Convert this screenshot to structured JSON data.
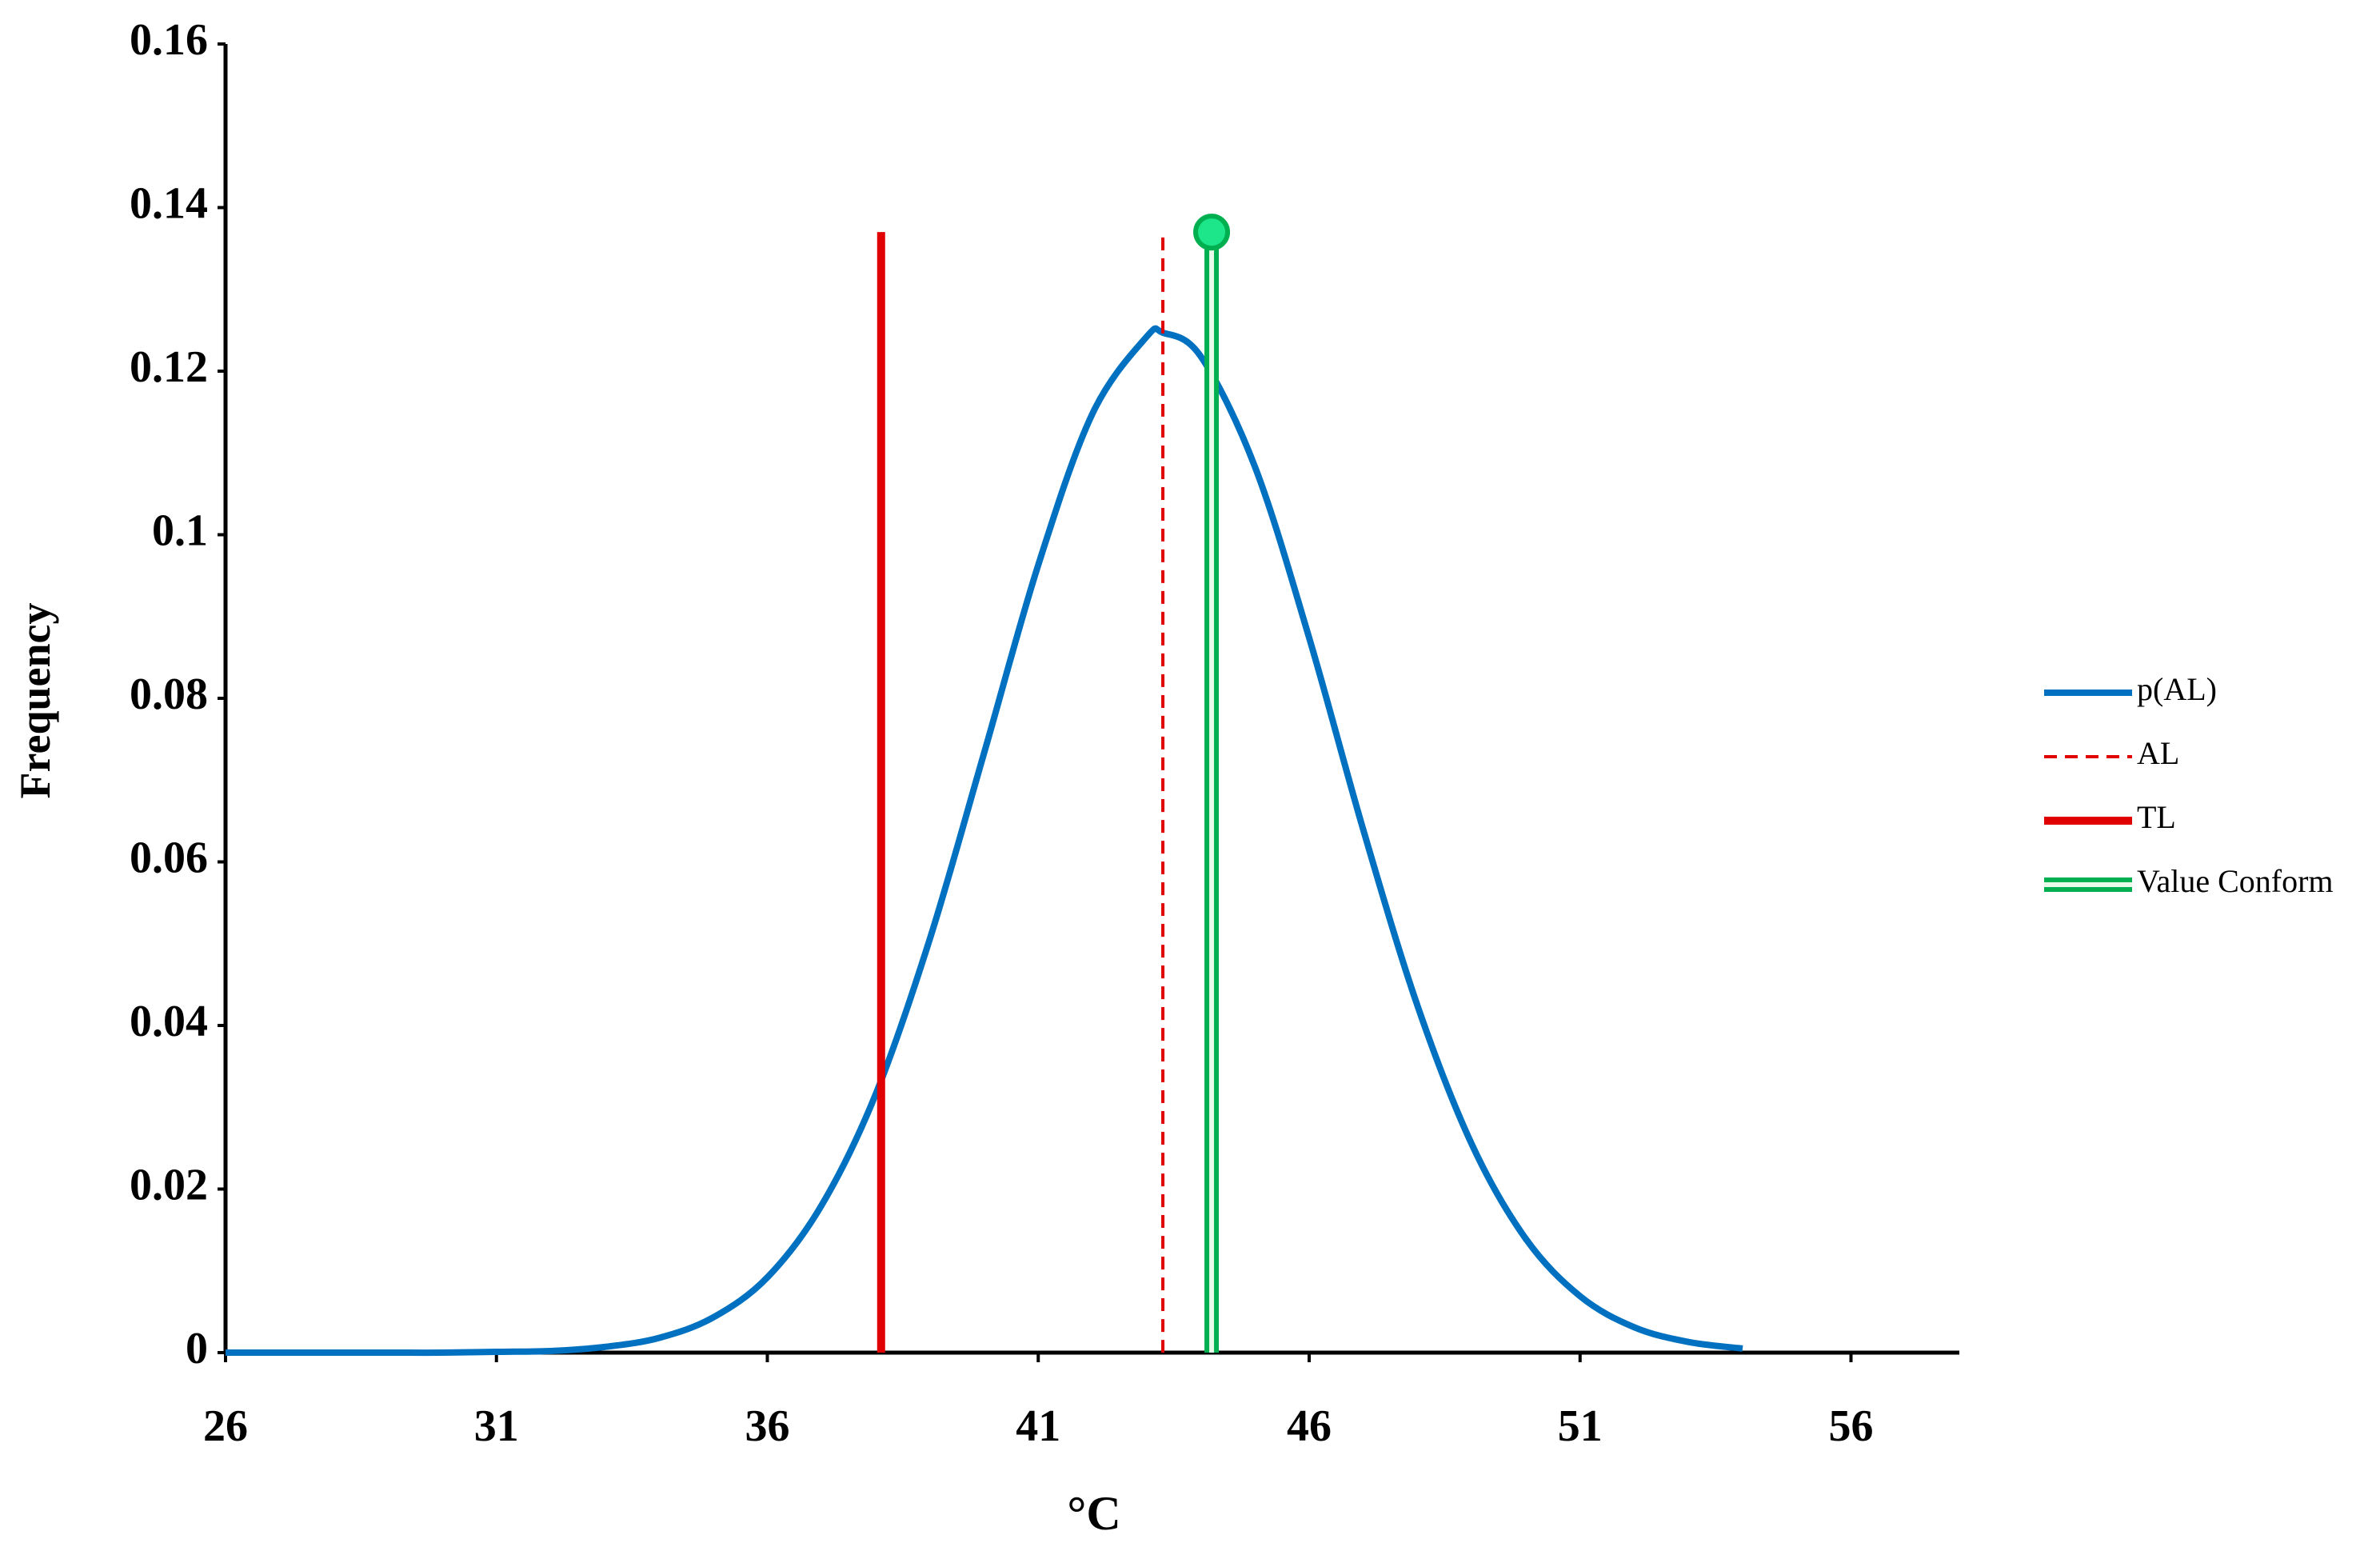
{
  "chart_data": {
    "type": "line",
    "xlabel": "°C",
    "ylabel": "Frequency",
    "xlim": [
      26,
      58
    ],
    "xticks": [
      26,
      31,
      36,
      41,
      46,
      51,
      56
    ],
    "ylim": [
      0,
      0.16
    ],
    "yticks": [
      0,
      0.02,
      0.04,
      0.06,
      0.08,
      0.1,
      0.12,
      0.14,
      0.16
    ],
    "legend": "right",
    "series": [
      {
        "name": "p(AL)",
        "color": "#0070c0",
        "style": "solid",
        "x": [
          26,
          27,
          28,
          29,
          30,
          31,
          32,
          33,
          34,
          35,
          36,
          37,
          38,
          39,
          40,
          41,
          42,
          43,
          43.3,
          44,
          45,
          46,
          47,
          48,
          49,
          50,
          51,
          52,
          53,
          54
        ],
        "values": [
          0,
          0,
          0,
          0,
          0,
          0.0001,
          0.0002,
          0.0007,
          0.0018,
          0.0043,
          0.0092,
          0.018,
          0.0316,
          0.0506,
          0.0733,
          0.0963,
          0.1148,
          0.1242,
          0.1247,
          0.1218,
          0.1083,
          0.0874,
          0.0639,
          0.0424,
          0.0255,
          0.0139,
          0.0069,
          0.0031,
          0.0013,
          0.0005
        ]
      },
      {
        "name": "AL",
        "color": "#e00000",
        "style": "dashed",
        "x": [
          43.3,
          43.3
        ],
        "values": [
          0,
          0.137
        ]
      },
      {
        "name": "TL",
        "color": "#e00000",
        "style": "thick",
        "x": [
          38.1,
          38.1
        ],
        "values": [
          0,
          0.137
        ]
      },
      {
        "name": "Value Conform",
        "color": "#00b050",
        "style": "double",
        "marker": "circle",
        "x": [
          44.2,
          44.2
        ],
        "values": [
          0,
          0.137
        ]
      }
    ]
  }
}
